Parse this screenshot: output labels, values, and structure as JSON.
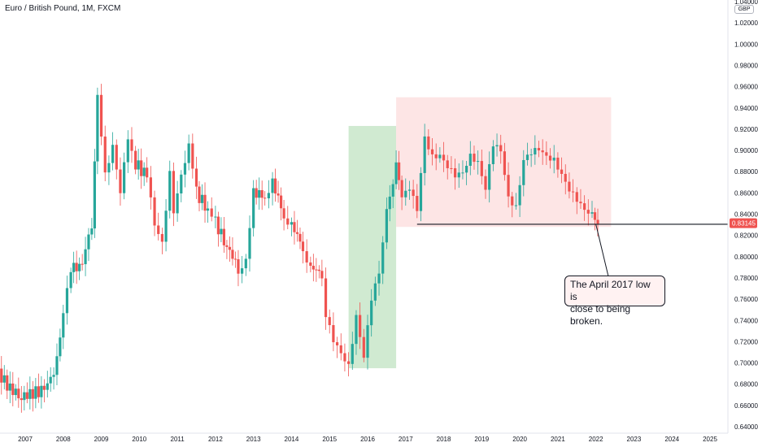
{
  "header": {
    "title": "Euro / British Pound, 1M, FXCM",
    "currency": "GBP"
  },
  "colors": {
    "up": "#26a69a",
    "down": "#ef5350",
    "bull_zone": "#c8e6c9",
    "range_zone": "#fde2e2",
    "line": "#131722",
    "price_label": "#ef5350"
  },
  "annotation": {
    "text_line1": "The April 2017 low is",
    "text_line2": "close to being broken."
  },
  "price_label": "0.83145",
  "chart_data": {
    "type": "candlestick",
    "title": "Euro / British Pound, 1M, FXCM",
    "xlabel": "",
    "ylabel": "",
    "ylim": [
      0.64,
      1.04
    ],
    "xlim": [
      2006.3,
      2025.6
    ],
    "y_ticks": [
      "0.64000",
      "0.66000",
      "0.68000",
      "0.70000",
      "0.72000",
      "0.74000",
      "0.76000",
      "0.78000",
      "0.80000",
      "0.82000",
      "0.84000",
      "0.86000",
      "0.88000",
      "0.90000",
      "0.92000",
      "0.94000",
      "0.96000",
      "0.98000",
      "1.00000",
      "1.02000",
      "1.04000"
    ],
    "x_ticks": [
      "2007",
      "2008",
      "2009",
      "2010",
      "2011",
      "2012",
      "2013",
      "2014",
      "2015",
      "2016",
      "2017",
      "2018",
      "2019",
      "2020",
      "2021",
      "2022",
      "2023",
      "2024",
      "2025"
    ],
    "close_series": [
      [
        2006.3,
        0.69
      ],
      [
        2006.6,
        0.676
      ],
      [
        2006.9,
        0.668
      ],
      [
        2007.2,
        0.672
      ],
      [
        2007.5,
        0.674
      ],
      [
        2007.75,
        0.69
      ],
      [
        2008.0,
        0.745
      ],
      [
        2008.2,
        0.79
      ],
      [
        2008.5,
        0.79
      ],
      [
        2008.75,
        0.83
      ],
      [
        2008.9,
        0.958
      ],
      [
        2009.1,
        0.88
      ],
      [
        2009.3,
        0.9
      ],
      [
        2009.5,
        0.855
      ],
      [
        2009.7,
        0.912
      ],
      [
        2009.9,
        0.888
      ],
      [
        2010.2,
        0.875
      ],
      [
        2010.4,
        0.835
      ],
      [
        2010.6,
        0.818
      ],
      [
        2010.8,
        0.878
      ],
      [
        2010.9,
        0.846
      ],
      [
        2011.1,
        0.882
      ],
      [
        2011.3,
        0.905
      ],
      [
        2011.5,
        0.86
      ],
      [
        2011.8,
        0.845
      ],
      [
        2012.0,
        0.832
      ],
      [
        2012.3,
        0.81
      ],
      [
        2012.6,
        0.79
      ],
      [
        2012.8,
        0.8
      ],
      [
        2013.0,
        0.86
      ],
      [
        2013.3,
        0.858
      ],
      [
        2013.5,
        0.87
      ],
      [
        2013.8,
        0.84
      ],
      [
        2014.0,
        0.83
      ],
      [
        2014.3,
        0.81
      ],
      [
        2014.5,
        0.79
      ],
      [
        2014.8,
        0.785
      ],
      [
        2014.9,
        0.74
      ],
      [
        2015.1,
        0.723
      ],
      [
        2015.3,
        0.715
      ],
      [
        2015.5,
        0.7
      ],
      [
        2015.7,
        0.74
      ],
      [
        2015.9,
        0.7
      ],
      [
        2016.1,
        0.76
      ],
      [
        2016.3,
        0.79
      ],
      [
        2016.5,
        0.848
      ],
      [
        2016.75,
        0.885
      ],
      [
        2016.9,
        0.85
      ],
      [
        2017.1,
        0.862
      ],
      [
        2017.3,
        0.848
      ],
      [
        2017.5,
        0.918
      ],
      [
        2017.7,
        0.895
      ],
      [
        2017.9,
        0.89
      ],
      [
        2018.1,
        0.88
      ],
      [
        2018.3,
        0.878
      ],
      [
        2018.5,
        0.885
      ],
      [
        2018.7,
        0.898
      ],
      [
        2018.9,
        0.885
      ],
      [
        2019.1,
        0.858
      ],
      [
        2019.3,
        0.905
      ],
      [
        2019.5,
        0.905
      ],
      [
        2019.7,
        0.86
      ],
      [
        2019.9,
        0.845
      ],
      [
        2020.1,
        0.885
      ],
      [
        2020.3,
        0.895
      ],
      [
        2020.5,
        0.905
      ],
      [
        2020.7,
        0.9
      ],
      [
        2020.9,
        0.892
      ],
      [
        2021.1,
        0.872
      ],
      [
        2021.3,
        0.858
      ],
      [
        2021.5,
        0.855
      ],
      [
        2021.7,
        0.85
      ],
      [
        2021.9,
        0.843
      ],
      [
        2022.05,
        0.831
      ]
    ],
    "zones": [
      {
        "x": [
          2015.5,
          2016.75
        ],
        "y": [
          0.695,
          0.923
        ]
      },
      {
        "x": [
          2016.75,
          2022.4
        ],
        "y": [
          0.828,
          0.95
        ]
      }
    ],
    "horizontal_line": {
      "x": [
        2017.3,
        2025.6
      ],
      "y": 0.8305
    },
    "last_price": 0.83145
  }
}
